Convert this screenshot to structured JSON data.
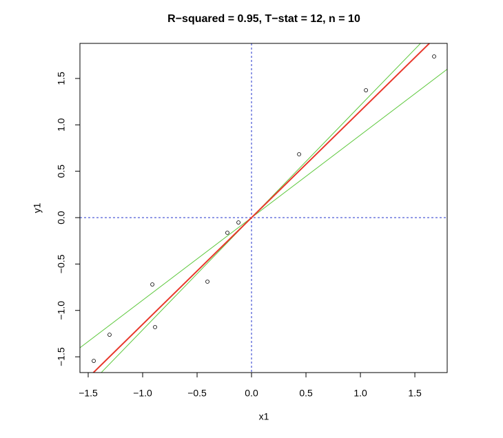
{
  "chart_data": {
    "type": "scatter",
    "title": "R−squared = 0.95, T−stat = 12, n = 10",
    "x_label": "x1",
    "y_label": "y1",
    "x": [
      -1.449,
      -1.304,
      -0.911,
      -0.886,
      -0.405,
      -0.222,
      -0.12,
      0.437,
      1.051,
      1.677
    ],
    "y": [
      -1.544,
      -1.262,
      -0.72,
      -1.18,
      -0.69,
      -0.163,
      -0.052,
      0.683,
      1.373,
      1.737
    ],
    "point_color": "#000000",
    "xlim": [
      -1.576,
      1.797
    ],
    "ylim": [
      -1.67,
      1.878
    ],
    "xticks": [
      {
        "value": -1.5,
        "label": "−1.5"
      },
      {
        "value": -1.0,
        "label": "−1.0"
      },
      {
        "value": -0.5,
        "label": "−0.5"
      },
      {
        "value": 0,
        "label": "0.0"
      },
      0.5,
      {
        "value": 1.0,
        "label": "1.0"
      },
      1.5
    ],
    "yticks": [
      {
        "value": -1.5,
        "label": "−1.5"
      },
      {
        "value": -1.0,
        "label": "−1.0"
      },
      {
        "value": -0.5,
        "label": "−0.5"
      },
      {
        "value": 0,
        "label": "0.0"
      },
      0.5,
      {
        "value": 1.0,
        "label": "1.0"
      },
      1.5
    ],
    "lines": [
      {
        "slope": 1.21,
        "intercept": 0,
        "color": "#5cc83b",
        "width": 1
      },
      {
        "slope": 0.89,
        "intercept": 0,
        "color": "#5cc83b",
        "width": 1
      },
      {
        "slope": 1.15,
        "intercept": 0,
        "color": "#e8372a",
        "width": 2
      }
    ],
    "hlines": [
      0
    ],
    "vlines": [
      0
    ],
    "ref_color": "#2233cc"
  }
}
